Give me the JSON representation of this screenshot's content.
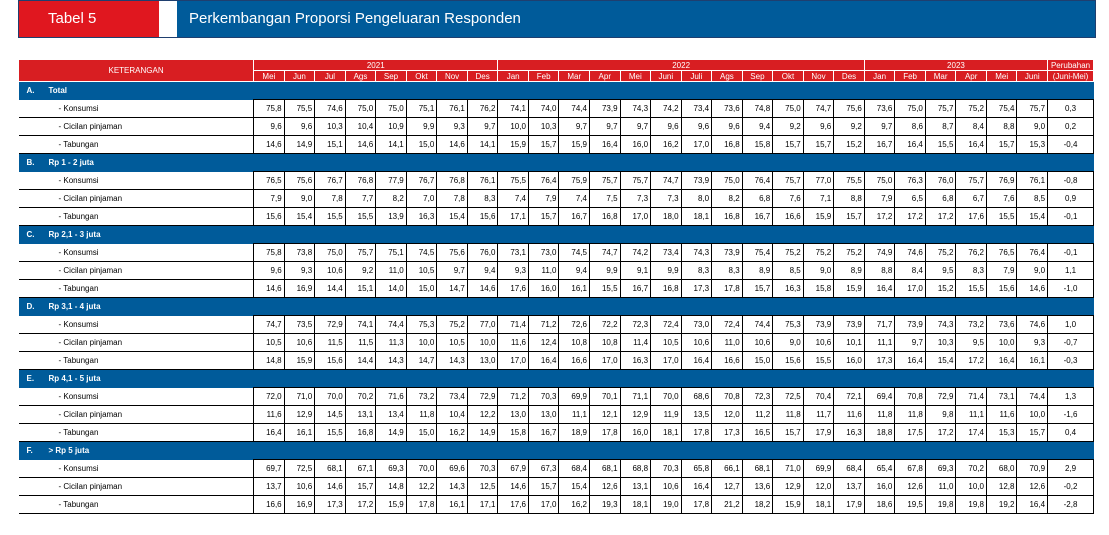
{
  "banner": {
    "tag": "Tabel 5",
    "title": "Perkembangan Proporsi Pengeluaran Responden"
  },
  "table": {
    "ket_header": "KETERANGAN",
    "years": [
      "2021",
      "2022",
      "2023"
    ],
    "perubahan": [
      "Perubahan",
      "(Juni-Mei)"
    ],
    "months": [
      "Mei",
      "Jun",
      "Jul",
      "Ags",
      "Sep",
      "Okt",
      "Nov",
      "Des",
      "Jan",
      "Feb",
      "Mar",
      "Apr",
      "Mei",
      "Juni",
      "Juli",
      "Ags",
      "Sep",
      "Okt",
      "Nov",
      "Des",
      "Jan",
      "Feb",
      "Mar",
      "Apr",
      "Mei",
      "Juni"
    ],
    "sections": [
      {
        "id": "A.",
        "name": "Total",
        "rows": [
          {
            "label": "- Konsumsi",
            "values": [
              "75,8",
              "75,5",
              "74,6",
              "75,0",
              "75,0",
              "75,1",
              "76,1",
              "76,2",
              "74,1",
              "74,0",
              "74,4",
              "73,9",
              "74,3",
              "74,2",
              "73,4",
              "73,6",
              "74,8",
              "75,0",
              "74,7",
              "75,6",
              "73,6",
              "75,0",
              "75,7",
              "75,2",
              "75,4",
              "75,7"
            ],
            "change": "0,3"
          },
          {
            "label": "- Cicilan pinjaman",
            "values": [
              "9,6",
              "9,6",
              "10,3",
              "10,4",
              "10,9",
              "9,9",
              "9,3",
              "9,7",
              "10,0",
              "10,3",
              "9,7",
              "9,7",
              "9,7",
              "9,6",
              "9,6",
              "9,6",
              "9,4",
              "9,2",
              "9,6",
              "9,2",
              "9,7",
              "8,6",
              "8,7",
              "8,4",
              "8,8",
              "9,0"
            ],
            "change": "0,2"
          },
          {
            "label": "- Tabungan",
            "values": [
              "14,6",
              "14,9",
              "15,1",
              "14,6",
              "14,1",
              "15,0",
              "14,6",
              "14,1",
              "15,9",
              "15,7",
              "15,9",
              "16,4",
              "16,0",
              "16,2",
              "17,0",
              "16,8",
              "15,8",
              "15,7",
              "15,7",
              "15,2",
              "16,7",
              "16,4",
              "15,5",
              "16,4",
              "15,7",
              "15,3"
            ],
            "change": "-0,4"
          }
        ]
      },
      {
        "id": "B.",
        "name": "Rp 1 - 2 juta",
        "rows": [
          {
            "label": "- Konsumsi",
            "values": [
              "76,5",
              "75,6",
              "76,7",
              "76,8",
              "77,9",
              "76,7",
              "76,8",
              "76,1",
              "75,5",
              "76,4",
              "75,9",
              "75,7",
              "75,7",
              "74,7",
              "73,9",
              "75,0",
              "76,4",
              "75,7",
              "77,0",
              "75,5",
              "75,0",
              "76,3",
              "76,0",
              "75,7",
              "76,9",
              "76,1"
            ],
            "change": "-0,8"
          },
          {
            "label": "- Cicilan pinjaman",
            "values": [
              "7,9",
              "9,0",
              "7,8",
              "7,7",
              "8,2",
              "7,0",
              "7,8",
              "8,3",
              "7,4",
              "7,9",
              "7,4",
              "7,5",
              "7,3",
              "7,3",
              "8,0",
              "8,2",
              "6,8",
              "7,6",
              "7,1",
              "8,8",
              "7,9",
              "6,5",
              "6,8",
              "6,7",
              "7,6",
              "8,5"
            ],
            "change": "0,9"
          },
          {
            "label": "- Tabungan",
            "values": [
              "15,6",
              "15,4",
              "15,5",
              "15,5",
              "13,9",
              "16,3",
              "15,4",
              "15,6",
              "17,1",
              "15,7",
              "16,7",
              "16,8",
              "17,0",
              "18,0",
              "18,1",
              "16,8",
              "16,7",
              "16,6",
              "15,9",
              "15,7",
              "17,2",
              "17,2",
              "17,2",
              "17,6",
              "15,5",
              "15,4"
            ],
            "change": "-0,1"
          }
        ]
      },
      {
        "id": "C.",
        "name": "Rp 2,1 - 3 juta",
        "rows": [
          {
            "label": "- Konsumsi",
            "values": [
              "75,8",
              "73,8",
              "75,0",
              "75,7",
              "75,1",
              "74,5",
              "75,6",
              "76,0",
              "73,1",
              "73,0",
              "74,5",
              "74,7",
              "74,2",
              "73,4",
              "74,3",
              "73,9",
              "75,4",
              "75,2",
              "75,2",
              "75,2",
              "74,9",
              "74,6",
              "75,2",
              "76,2",
              "76,5",
              "76,4"
            ],
            "change": "-0,1"
          },
          {
            "label": "- Cicilan pinjaman",
            "values": [
              "9,6",
              "9,3",
              "10,6",
              "9,2",
              "11,0",
              "10,5",
              "9,7",
              "9,4",
              "9,3",
              "11,0",
              "9,4",
              "9,9",
              "9,1",
              "9,9",
              "8,3",
              "8,3",
              "8,9",
              "8,5",
              "9,0",
              "8,9",
              "8,8",
              "8,4",
              "9,5",
              "8,3",
              "7,9",
              "9,0"
            ],
            "change": "1,1"
          },
          {
            "label": "- Tabungan",
            "values": [
              "14,6",
              "16,9",
              "14,4",
              "15,1",
              "14,0",
              "15,0",
              "14,7",
              "14,6",
              "17,6",
              "16,0",
              "16,1",
              "15,5",
              "16,7",
              "16,8",
              "17,3",
              "17,8",
              "15,7",
              "16,3",
              "15,8",
              "15,9",
              "16,4",
              "17,0",
              "15,2",
              "15,5",
              "15,6",
              "14,6"
            ],
            "change": "-1,0"
          }
        ]
      },
      {
        "id": "D.",
        "name": "Rp 3,1 - 4 juta",
        "rows": [
          {
            "label": "- Konsumsi",
            "values": [
              "74,7",
              "73,5",
              "72,9",
              "74,1",
              "74,4",
              "75,3",
              "75,2",
              "77,0",
              "71,4",
              "71,2",
              "72,6",
              "72,2",
              "72,3",
              "72,4",
              "73,0",
              "72,4",
              "74,4",
              "75,3",
              "73,9",
              "73,9",
              "71,7",
              "73,9",
              "74,3",
              "73,2",
              "73,6",
              "74,6"
            ],
            "change": "1,0"
          },
          {
            "label": "- Cicilan pinjaman",
            "values": [
              "10,5",
              "10,6",
              "11,5",
              "11,5",
              "11,3",
              "10,0",
              "10,5",
              "10,0",
              "11,6",
              "12,4",
              "10,8",
              "10,8",
              "11,4",
              "10,5",
              "10,6",
              "11,0",
              "10,6",
              "9,0",
              "10,6",
              "10,1",
              "11,1",
              "9,7",
              "10,3",
              "9,5",
              "10,0",
              "9,3"
            ],
            "change": "-0,7"
          },
          {
            "label": "- Tabungan",
            "values": [
              "14,8",
              "15,9",
              "15,6",
              "14,4",
              "14,3",
              "14,7",
              "14,3",
              "13,0",
              "17,0",
              "16,4",
              "16,6",
              "17,0",
              "16,3",
              "17,0",
              "16,4",
              "16,6",
              "15,0",
              "15,6",
              "15,5",
              "16,0",
              "17,3",
              "16,4",
              "15,4",
              "17,2",
              "16,4",
              "16,1"
            ],
            "change": "-0,3"
          }
        ]
      },
      {
        "id": "E.",
        "name": "Rp 4,1 - 5 juta",
        "rows": [
          {
            "label": "- Konsumsi",
            "values": [
              "72,0",
              "71,0",
              "70,0",
              "70,2",
              "71,6",
              "73,2",
              "73,4",
              "72,9",
              "71,2",
              "70,3",
              "69,9",
              "70,1",
              "71,1",
              "70,0",
              "68,6",
              "70,8",
              "72,3",
              "72,5",
              "70,4",
              "72,1",
              "69,4",
              "70,8",
              "72,9",
              "71,4",
              "73,1",
              "74,4"
            ],
            "change": "1,3"
          },
          {
            "label": "- Cicilan pinjaman",
            "values": [
              "11,6",
              "12,9",
              "14,5",
              "13,1",
              "13,4",
              "11,8",
              "10,4",
              "12,2",
              "13,0",
              "13,0",
              "11,1",
              "12,1",
              "12,9",
              "11,9",
              "13,5",
              "12,0",
              "11,2",
              "11,8",
              "11,7",
              "11,6",
              "11,8",
              "11,8",
              "9,8",
              "11,1",
              "11,6",
              "10,0"
            ],
            "change": "-1,6"
          },
          {
            "label": "- Tabungan",
            "values": [
              "16,4",
              "16,1",
              "15,5",
              "16,8",
              "14,9",
              "15,0",
              "16,2",
              "14,9",
              "15,8",
              "16,7",
              "18,9",
              "17,8",
              "16,0",
              "18,1",
              "17,8",
              "17,3",
              "16,5",
              "15,7",
              "17,9",
              "16,3",
              "18,8",
              "17,5",
              "17,2",
              "17,4",
              "15,3",
              "15,7"
            ],
            "change": "0,4"
          }
        ]
      },
      {
        "id": "F.",
        "name": "> Rp 5 juta",
        "rows": [
          {
            "label": "- Konsumsi",
            "values": [
              "69,7",
              "72,5",
              "68,1",
              "67,1",
              "69,3",
              "70,0",
              "69,6",
              "70,3",
              "67,9",
              "67,3",
              "68,4",
              "68,1",
              "68,8",
              "70,3",
              "65,8",
              "66,1",
              "68,1",
              "71,0",
              "69,9",
              "68,4",
              "65,4",
              "67,8",
              "69,3",
              "70,2",
              "68,0",
              "70,9"
            ],
            "change": "2,9"
          },
          {
            "label": "- Cicilan pinjaman",
            "values": [
              "13,7",
              "10,6",
              "14,6",
              "15,7",
              "14,8",
              "12,2",
              "14,3",
              "12,5",
              "14,6",
              "15,7",
              "15,4",
              "12,6",
              "13,1",
              "10,6",
              "16,4",
              "12,7",
              "13,6",
              "12,9",
              "12,0",
              "13,7",
              "16,0",
              "12,6",
              "11,0",
              "10,0",
              "12,8",
              "12,6"
            ],
            "change": "-0,2"
          },
          {
            "label": "- Tabungan",
            "values": [
              "16,6",
              "16,9",
              "17,3",
              "17,2",
              "15,9",
              "17,8",
              "16,1",
              "17,1",
              "17,6",
              "17,0",
              "16,2",
              "19,3",
              "18,1",
              "19,0",
              "17,8",
              "21,2",
              "18,2",
              "15,9",
              "18,1",
              "17,9",
              "18,6",
              "19,5",
              "19,8",
              "19,8",
              "19,2",
              "16,4"
            ],
            "change": "-2,8"
          }
        ]
      }
    ]
  }
}
